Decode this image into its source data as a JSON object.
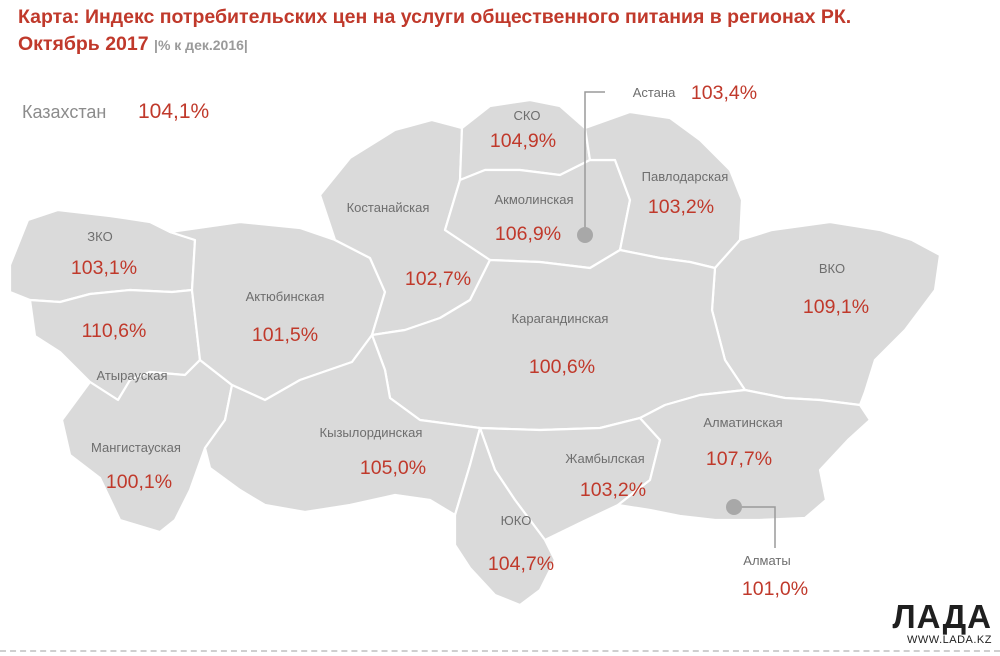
{
  "title": {
    "main": "Карта: Индекс потребительских цен на услуги общественного питания в регионах РК.",
    "line2": "Октябрь 2017",
    "unit": "|% к дек.2016|"
  },
  "country": {
    "name": "Казахстан",
    "value": "104,1%"
  },
  "regions": {
    "sko": {
      "name": "СКО",
      "value": "104,9%"
    },
    "astana": {
      "name": "Астана",
      "value": "103,4%"
    },
    "akmolinskaya": {
      "name": "Акмолинская",
      "value": "106,9%"
    },
    "pavlodarskaya": {
      "name": "Павлодарская",
      "value": "103,2%"
    },
    "kostanayskaya": {
      "name": "Костанайская",
      "value": "102,7%"
    },
    "zko": {
      "name": "ЗКО",
      "value": "103,1%"
    },
    "vko": {
      "name": "ВКО",
      "value": "109,1%"
    },
    "aktyubinskaya": {
      "name": "Актюбинская",
      "value": "101,5%"
    },
    "atyrauskaya": {
      "name": "Атырауская",
      "value": "110,6%"
    },
    "karagandinskaya": {
      "name": "Карагандинская",
      "value": "100,6%"
    },
    "mangistauskaya": {
      "name": "Мангистауская",
      "value": "100,1%"
    },
    "kyzylordinskaya": {
      "name": "Кызылординская",
      "value": "105,0%"
    },
    "almatinskaya": {
      "name": "Алматинская",
      "value": "107,7%"
    },
    "zhambylskaya": {
      "name": "Жамбылская",
      "value": "103,2%"
    },
    "yuko": {
      "name": "ЮКО",
      "value": "104,7%"
    },
    "almaty": {
      "name": "Алматы",
      "value": "101,0%"
    }
  },
  "brand": {
    "logo": "ЛАДА",
    "url": "WWW.LADA.KZ"
  },
  "colors": {
    "accent": "#c0392b",
    "map_fill": "#dadada",
    "label": "#6e6e6e",
    "city_dot": "#a8a8a8"
  }
}
